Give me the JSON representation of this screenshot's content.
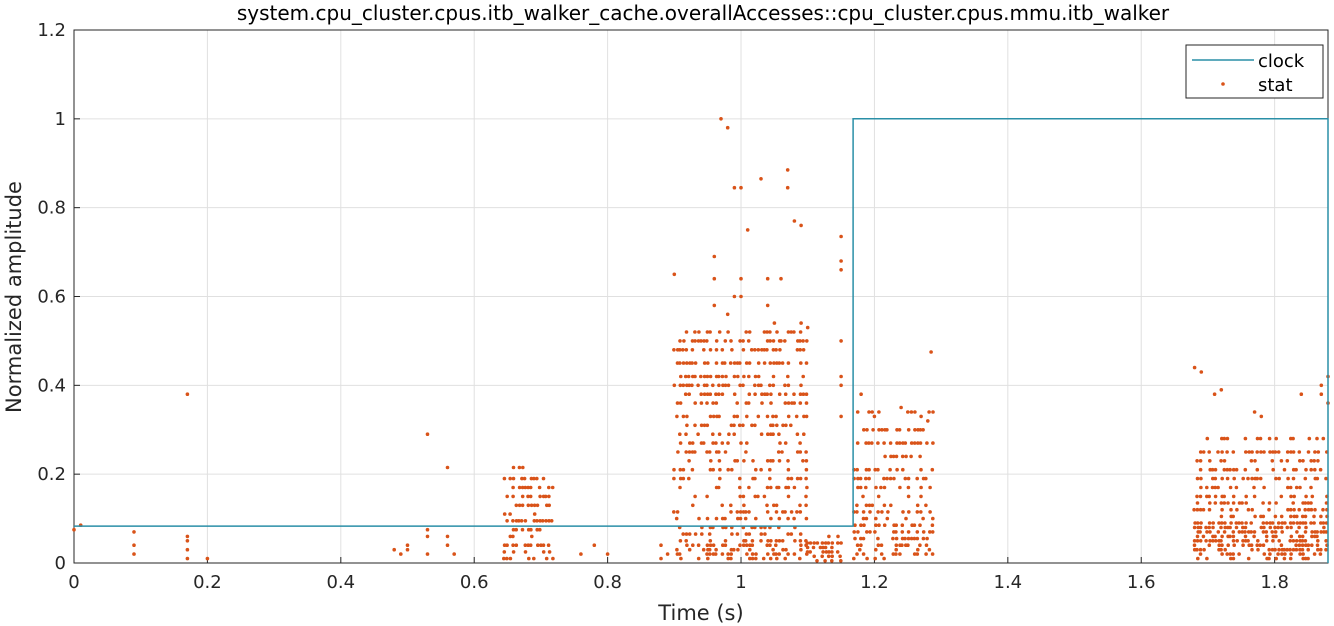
{
  "chart_data": {
    "type": "line+scatter",
    "title": "system.cpu_cluster.cpus.itb_walker_cache.overallAccesses::cpu_cluster.cpus.mmu.itb_walker",
    "xlabel": "Time (s)",
    "ylabel": "Normalized amplitude",
    "xlim": [
      0,
      1.88
    ],
    "ylim": [
      0,
      1.2
    ],
    "x_ticks": [
      "0",
      "0.2",
      "0.4",
      "0.6",
      "0.8",
      "1",
      "1.2",
      "1.4",
      "1.6",
      "1.8"
    ],
    "y_ticks": [
      "0",
      "0.2",
      "0.4",
      "0.6",
      "0.8",
      "1",
      "1.2"
    ],
    "grid": true,
    "legend_position": "top-right",
    "colors": {
      "clock": "#2a8fa7",
      "stat": "#d95319"
    },
    "series": [
      {
        "name": "clock",
        "kind": "step-line",
        "points": [
          [
            0,
            0.083
          ],
          [
            1.168,
            0.083
          ],
          [
            1.168,
            1.0
          ],
          [
            1.88,
            1.0
          ],
          [
            1.88,
            0
          ]
        ]
      },
      {
        "name": "stat",
        "kind": "scatter",
        "points": [
          [
            0,
            0.075
          ],
          [
            0.01,
            0.085
          ],
          [
            0.09,
            0.07
          ],
          [
            0.09,
            0.04
          ],
          [
            0.09,
            0.02
          ],
          [
            0.17,
            0.38
          ],
          [
            0.17,
            0.06
          ],
          [
            0.17,
            0.05
          ],
          [
            0.17,
            0.03
          ],
          [
            0.17,
            0.01
          ],
          [
            0.2,
            0.01
          ],
          [
            0.48,
            0.03
          ],
          [
            0.49,
            0.02
          ],
          [
            0.5,
            0.03
          ],
          [
            0.5,
            0.04
          ],
          [
            0.53,
            0.29
          ],
          [
            0.53,
            0.075
          ],
          [
            0.53,
            0.06
          ],
          [
            0.53,
            0.02
          ],
          [
            0.56,
            0.215
          ],
          [
            0.56,
            0.06
          ],
          [
            0.56,
            0.04
          ],
          [
            0.57,
            0.02
          ],
          [
            0.76,
            0.02
          ],
          [
            0.78,
            0.04
          ],
          [
            0.8,
            0.02
          ],
          [
            0.88,
            0.04
          ],
          [
            0.88,
            0.01
          ],
          [
            0.89,
            0.02
          ],
          [
            0.97,
            1.0
          ],
          [
            0.98,
            0.98
          ],
          [
            0.99,
            0.845
          ],
          [
            1.0,
            0.845
          ],
          [
            1.03,
            0.865
          ],
          [
            1.01,
            0.75
          ],
          [
            1.07,
            0.885
          ],
          [
            1.07,
            0.845
          ],
          [
            1.08,
            0.77
          ],
          [
            1.09,
            0.76
          ],
          [
            1.09,
            0.54
          ],
          [
            0.9,
            0.65
          ],
          [
            0.96,
            0.69
          ],
          [
            0.96,
            0.64
          ],
          [
            0.96,
            0.58
          ],
          [
            0.98,
            0.56
          ],
          [
            0.99,
            0.6
          ],
          [
            1.0,
            0.6
          ],
          [
            1.0,
            0.64
          ],
          [
            1.04,
            0.64
          ],
          [
            1.06,
            0.64
          ],
          [
            1.04,
            0.58
          ],
          [
            1.05,
            0.54
          ],
          [
            1.06,
            0.5
          ],
          [
            1.1,
            0.53
          ],
          [
            1.15,
            0.735
          ],
          [
            1.15,
            0.68
          ],
          [
            1.15,
            0.66
          ],
          [
            1.15,
            0.5
          ],
          [
            1.15,
            0.42
          ],
          [
            1.15,
            0.4
          ],
          [
            1.15,
            0.33
          ],
          [
            1.285,
            0.475
          ],
          [
            1.18,
            0.38
          ],
          [
            1.2,
            0.33
          ],
          [
            1.24,
            0.35
          ],
          [
            1.25,
            0.34
          ],
          [
            1.27,
            0.33
          ],
          [
            1.28,
            0.32
          ],
          [
            1.68,
            0.44
          ],
          [
            1.69,
            0.43
          ],
          [
            1.71,
            0.38
          ],
          [
            1.72,
            0.39
          ],
          [
            1.77,
            0.34
          ],
          [
            1.78,
            0.33
          ],
          [
            1.84,
            0.38
          ],
          [
            1.87,
            0.4
          ],
          [
            1.88,
            0.42
          ],
          [
            1.88,
            0.36
          ],
          [
            1.87,
            0.38
          ]
        ],
        "dense_clusters": [
          {
            "x_range": [
              0.645,
              0.72
            ],
            "y_max": 0.215,
            "rows": [
              0.215,
              0.19,
              0.17,
              0.15,
              0.13,
              0.11,
              0.095,
              0.075,
              0.06,
              0.04,
              0.025,
              0.01
            ]
          },
          {
            "x_range": [
              0.9,
              1.1
            ],
            "y_max": 0.52,
            "rows": [
              0.52,
              0.5,
              0.48,
              0.45,
              0.42,
              0.4,
              0.38,
              0.36,
              0.33,
              0.31,
              0.29,
              0.27,
              0.25,
              0.23,
              0.21,
              0.19,
              0.17,
              0.15,
              0.13,
              0.115,
              0.1,
              0.08,
              0.065,
              0.05,
              0.04,
              0.03,
              0.02,
              0.01
            ]
          },
          {
            "x_range": [
              1.1,
              1.15
            ],
            "y_max": 0.06,
            "rows": [
              0.06,
              0.045,
              0.035,
              0.025,
              0.015,
              0.005
            ]
          },
          {
            "x_range": [
              1.17,
              1.29
            ],
            "y_max": 0.36,
            "rows": [
              0.34,
              0.3,
              0.27,
              0.24,
              0.21,
              0.19,
              0.17,
              0.15,
              0.13,
              0.115,
              0.1,
              0.085,
              0.07,
              0.055,
              0.04,
              0.03,
              0.02,
              0.01
            ]
          },
          {
            "x_range": [
              1.68,
              1.88
            ],
            "y_max": 0.3,
            "rows": [
              0.28,
              0.25,
              0.23,
              0.21,
              0.19,
              0.17,
              0.15,
              0.135,
              0.12,
              0.105,
              0.09,
              0.08,
              0.07,
              0.06,
              0.05,
              0.04,
              0.03,
              0.02,
              0.01
            ]
          }
        ]
      }
    ]
  }
}
